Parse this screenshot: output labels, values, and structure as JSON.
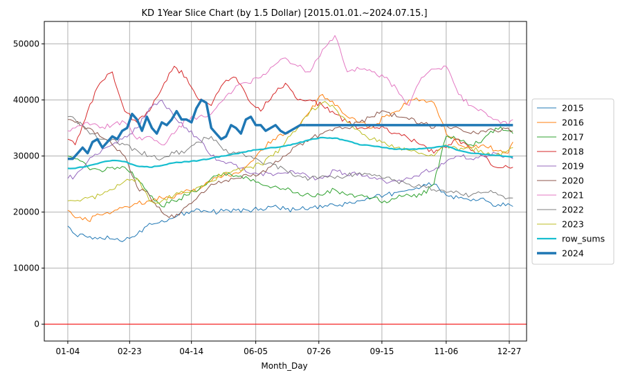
{
  "chart_data": {
    "type": "line",
    "title": "KD 1Year Slice Chart (by 1.5 Dollar) [2015.01.01.~2024.07.15.]",
    "xlabel": "Month_Day",
    "ylabel": "",
    "xlim": [
      -15,
      375
    ],
    "ylim": [
      -3000,
      54000
    ],
    "x_ticks": [
      {
        "label": "01-04",
        "x": 4
      },
      {
        "label": "02-23",
        "x": 54
      },
      {
        "label": "04-14",
        "x": 104
      },
      {
        "label": "06-05",
        "x": 156
      },
      {
        "label": "07-26",
        "x": 207
      },
      {
        "label": "09-15",
        "x": 258
      },
      {
        "label": "11-06",
        "x": 310
      },
      {
        "label": "12-27",
        "x": 361
      }
    ],
    "y_ticks": [
      0,
      10000,
      20000,
      30000,
      40000,
      50000
    ],
    "grid": true,
    "legend_position": "right-outside",
    "reference_line": {
      "y": 0,
      "color": "#ff0000"
    },
    "series": [
      {
        "name": "2015",
        "color": "#1f77b4",
        "width": 1,
        "x": [
          4,
          10,
          20,
          30,
          40,
          50,
          60,
          70,
          80,
          90,
          100,
          110,
          120,
          130,
          140,
          150,
          160,
          170,
          180,
          190,
          200,
          210,
          220,
          230,
          240,
          250,
          260,
          270,
          280,
          290,
          300,
          310,
          320,
          330,
          340,
          350,
          360,
          364
        ],
        "y": [
          17500,
          16000,
          15500,
          15500,
          15200,
          15000,
          16000,
          18000,
          18500,
          19000,
          20000,
          20500,
          20000,
          20200,
          20300,
          20300,
          20600,
          21000,
          20500,
          20400,
          20800,
          20800,
          21200,
          21500,
          22000,
          22500,
          23000,
          23500,
          24000,
          24500,
          25000,
          23000,
          22500,
          22000,
          22500,
          21000,
          21500,
          21000
        ]
      },
      {
        "name": "2016",
        "color": "#ff7f0e",
        "width": 1,
        "x": [
          4,
          10,
          20,
          30,
          40,
          50,
          60,
          70,
          80,
          90,
          100,
          110,
          120,
          130,
          140,
          150,
          160,
          170,
          180,
          190,
          200,
          210,
          220,
          230,
          240,
          250,
          260,
          270,
          280,
          290,
          300,
          310,
          320,
          330,
          340,
          350,
          360,
          364
        ],
        "y": [
          20300,
          19000,
          18500,
          19500,
          20000,
          21000,
          21500,
          22000,
          22500,
          22500,
          24000,
          24000,
          25500,
          26500,
          27000,
          28500,
          31000,
          33000,
          34000,
          35000,
          38000,
          41000,
          39000,
          37000,
          36000,
          35000,
          37000,
          38000,
          40000,
          40000,
          39500,
          34000,
          32000,
          31500,
          32000,
          31000,
          30500,
          32500
        ]
      },
      {
        "name": "2017",
        "color": "#2ca02c",
        "width": 1,
        "x": [
          4,
          10,
          20,
          30,
          40,
          50,
          60,
          70,
          80,
          90,
          100,
          110,
          120,
          130,
          140,
          150,
          160,
          170,
          180,
          190,
          200,
          210,
          220,
          230,
          240,
          250,
          260,
          270,
          280,
          290,
          300,
          310,
          320,
          330,
          340,
          350,
          360,
          364
        ],
        "y": [
          30000,
          29500,
          28000,
          27500,
          28000,
          28000,
          26000,
          23000,
          21000,
          22000,
          23000,
          24000,
          26000,
          27000,
          26500,
          26000,
          25000,
          24500,
          24000,
          23500,
          23000,
          23000,
          24000,
          23000,
          23000,
          22500,
          22000,
          22500,
          23000,
          23000,
          25000,
          33500,
          33000,
          32000,
          33000,
          35000,
          34500,
          34000
        ]
      },
      {
        "name": "2018",
        "color": "#d62728",
        "width": 1,
        "x": [
          4,
          10,
          20,
          30,
          40,
          50,
          60,
          70,
          80,
          90,
          100,
          110,
          120,
          130,
          140,
          150,
          160,
          170,
          180,
          190,
          200,
          210,
          220,
          230,
          240,
          250,
          260,
          270,
          280,
          290,
          300,
          310,
          320,
          330,
          340,
          350,
          360,
          364
        ],
        "y": [
          33000,
          32000,
          38000,
          43000,
          45000,
          38000,
          36000,
          38000,
          42000,
          46000,
          44000,
          40000,
          39000,
          43000,
          44000,
          40000,
          38000,
          41000,
          43000,
          40000,
          40000,
          39000,
          37500,
          36000,
          35000,
          35500,
          35000,
          34000,
          33000,
          32000,
          30500,
          31500,
          33000,
          31000,
          30000,
          28000,
          28000,
          28000
        ]
      },
      {
        "name": "2019",
        "color": "#9467bd",
        "width": 1,
        "x": [
          4,
          10,
          20,
          30,
          40,
          50,
          60,
          70,
          80,
          90,
          100,
          110,
          120,
          130,
          140,
          150,
          160,
          170,
          180,
          190,
          200,
          210,
          220,
          230,
          240,
          250,
          260,
          270,
          280,
          290,
          300,
          310,
          320,
          330,
          340,
          350,
          360,
          364
        ],
        "y": [
          26000,
          26500,
          29000,
          30500,
          32000,
          33500,
          35000,
          38500,
          40000,
          37000,
          35000,
          33000,
          30000,
          29000,
          28500,
          27000,
          27000,
          26500,
          27000,
          27000,
          26000,
          26000,
          27500,
          26500,
          27000,
          26000,
          25500,
          25500,
          26000,
          27000,
          27500,
          29000,
          30000,
          29500,
          30000,
          30500,
          30000,
          29500
        ]
      },
      {
        "name": "2020",
        "color": "#8c564b",
        "width": 1,
        "x": [
          4,
          10,
          20,
          30,
          40,
          50,
          60,
          70,
          80,
          90,
          100,
          110,
          120,
          130,
          140,
          150,
          160,
          170,
          180,
          190,
          200,
          210,
          220,
          230,
          240,
          250,
          260,
          270,
          280,
          290,
          300,
          310,
          320,
          330,
          340,
          350,
          360,
          364
        ],
        "y": [
          36500,
          36000,
          35000,
          33500,
          32000,
          30000,
          24500,
          23000,
          20000,
          19000,
          21000,
          23000,
          25000,
          25500,
          26000,
          26500,
          27000,
          28500,
          30000,
          32000,
          33000,
          34000,
          35000,
          35000,
          36000,
          37000,
          38000,
          37000,
          36500,
          36000,
          35000,
          35500,
          35000,
          34000,
          34500,
          34500,
          35000,
          34500
        ]
      },
      {
        "name": "2021",
        "color": "#e377c2",
        "width": 1,
        "x": [
          4,
          10,
          20,
          30,
          40,
          50,
          60,
          70,
          80,
          90,
          100,
          110,
          120,
          130,
          140,
          150,
          160,
          170,
          180,
          190,
          200,
          210,
          220,
          230,
          240,
          250,
          260,
          270,
          280,
          290,
          300,
          310,
          320,
          330,
          340,
          350,
          360,
          364
        ],
        "y": [
          34500,
          35000,
          36000,
          35000,
          35500,
          36000,
          33000,
          33500,
          32000,
          34000,
          36500,
          37000,
          37500,
          40000,
          42500,
          43000,
          44000,
          46000,
          47500,
          46000,
          45000,
          49000,
          51500,
          45000,
          45500,
          45000,
          44000,
          42000,
          39000,
          44000,
          45500,
          46000,
          41000,
          39000,
          38000,
          36500,
          35500,
          36500
        ]
      },
      {
        "name": "2022",
        "color": "#7f7f7f",
        "width": 1,
        "x": [
          4,
          10,
          20,
          30,
          40,
          50,
          60,
          70,
          80,
          90,
          100,
          110,
          120,
          130,
          140,
          150,
          160,
          170,
          180,
          190,
          200,
          210,
          220,
          230,
          240,
          250,
          260,
          270,
          280,
          290,
          300,
          310,
          320,
          330,
          340,
          350,
          360,
          364
        ],
        "y": [
          37000,
          36500,
          34500,
          33000,
          33000,
          32000,
          31000,
          30000,
          29500,
          30500,
          31000,
          32500,
          33500,
          31000,
          30500,
          30000,
          29000,
          28500,
          27500,
          26500,
          26000,
          26500,
          26000,
          26500,
          27000,
          26500,
          26000,
          25500,
          25000,
          24500,
          24000,
          23500,
          23500,
          23000,
          23500,
          23500,
          22500,
          22500
        ]
      },
      {
        "name": "2023",
        "color": "#bcbd22",
        "width": 1,
        "x": [
          4,
          10,
          20,
          30,
          40,
          50,
          60,
          70,
          80,
          90,
          100,
          110,
          120,
          130,
          140,
          150,
          160,
          170,
          180,
          190,
          200,
          210,
          220,
          230,
          240,
          250,
          260,
          270,
          280,
          290,
          300,
          310,
          320,
          330,
          340,
          350,
          360,
          364
        ],
        "y": [
          22000,
          22000,
          22500,
          23000,
          24000,
          25500,
          26000,
          22000,
          22000,
          23000,
          23500,
          24500,
          25500,
          27000,
          27500,
          28000,
          28500,
          30000,
          32500,
          35000,
          38000,
          39500,
          38500,
          36000,
          34500,
          33000,
          32500,
          31500,
          31000,
          30500,
          30000,
          32000,
          31000,
          31500,
          30500,
          30000,
          31000,
          31500
        ]
      },
      {
        "name": "row_sums",
        "color": "#17becf",
        "width": 2,
        "x": [
          4,
          10,
          20,
          30,
          40,
          50,
          60,
          70,
          80,
          90,
          100,
          110,
          120,
          130,
          140,
          150,
          160,
          170,
          180,
          190,
          200,
          210,
          220,
          230,
          240,
          250,
          260,
          270,
          280,
          290,
          300,
          310,
          320,
          330,
          340,
          350,
          360,
          364
        ],
        "y": [
          27800,
          27800,
          28200,
          28800,
          29200,
          29000,
          28200,
          28000,
          28300,
          28800,
          29000,
          29200,
          29600,
          30000,
          30400,
          30900,
          31200,
          31500,
          31800,
          32300,
          32900,
          33300,
          33200,
          32700,
          32000,
          31800,
          31500,
          31200,
          31200,
          31300,
          31500,
          31800,
          31000,
          30500,
          30300,
          30100,
          29900,
          29800
        ]
      },
      {
        "name": "2024",
        "color": "#1f77b4",
        "width": 3,
        "x": [
          4,
          8,
          12,
          16,
          20,
          24,
          28,
          32,
          36,
          40,
          44,
          48,
          52,
          56,
          60,
          64,
          68,
          72,
          76,
          80,
          84,
          88,
          92,
          96,
          100,
          104,
          108,
          112,
          116,
          120,
          124,
          128,
          132,
          136,
          140,
          144,
          148,
          152,
          156,
          160,
          164,
          168,
          172,
          176,
          180,
          184,
          188,
          192,
          196
        ],
        "y": [
          29500,
          29500,
          30500,
          31500,
          30500,
          32500,
          33000,
          31500,
          32500,
          33500,
          33000,
          34500,
          35000,
          37500,
          36500,
          34500,
          37000,
          35000,
          34000,
          36000,
          35500,
          36500,
          38000,
          36500,
          36500,
          36000,
          38500,
          40000,
          39500,
          35000,
          34000,
          33000,
          33500,
          35500,
          35000,
          34000,
          36500,
          37000,
          35500,
          35500,
          34500,
          35000,
          35500,
          34500,
          34000,
          34500,
          35000,
          35500,
          35500
        ]
      },
      {
        "name": "2024",
        "color": "#1f77b4",
        "width": 3,
        "legend": false,
        "x": [
          196,
          364
        ],
        "y": [
          35500,
          35500
        ]
      }
    ]
  }
}
